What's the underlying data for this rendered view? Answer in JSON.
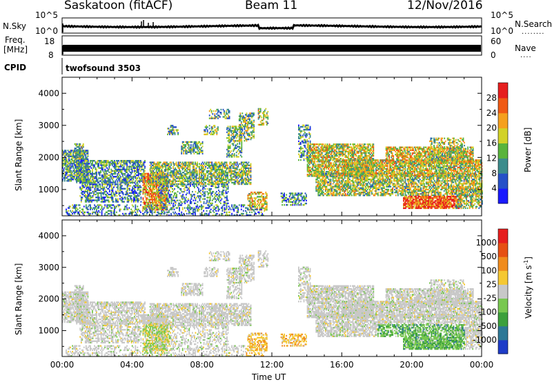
{
  "header": {
    "station": "Saskatoon (fitACF)",
    "beam": "Beam 11",
    "date": "12/Nov/2016"
  },
  "top_panels": {
    "nsky_label": "N.Sky",
    "nsky_ticks": [
      "10^5",
      "10^0"
    ],
    "nsearch_ticks": [
      "10^5",
      "10^0"
    ],
    "nsearch_label": "N.Search",
    "freq_label": "Freq.",
    "freq_unit": "[MHz]",
    "freq_ticks": [
      "18",
      "8"
    ],
    "nave_ticks": [
      "60",
      "0"
    ],
    "nave_label": "Nave",
    "cpid_label": "CPID",
    "cpid_value": "twofsound 3503"
  },
  "chart_data": [
    {
      "type": "heatmap",
      "name": "power",
      "ylabel": "Slant Range [km]",
      "ylim": [
        180,
        4500
      ],
      "yticks": [
        "1000",
        "2000",
        "3000",
        "4000"
      ],
      "xticks": [
        "00:00",
        "04:00",
        "08:00",
        "12:00",
        "16:00",
        "20:00",
        "00:00"
      ],
      "xlim_hours": [
        0,
        24
      ],
      "colorbar_label": "Power [dB]",
      "colorbar_ticks": [
        "4",
        "8",
        "12",
        "16",
        "20",
        "24",
        "28"
      ],
      "colorbar_colors": [
        "#1a1aff",
        "#2650c8",
        "#3c8c8c",
        "#59b43c",
        "#d2d228",
        "#f5a01e",
        "#f05a14",
        "#e61e1e"
      ]
    },
    {
      "type": "heatmap",
      "name": "velocity",
      "ylabel": "Slant Range [km]",
      "ylim": [
        180,
        4500
      ],
      "yticks": [
        "1000",
        "2000",
        "3000",
        "4000"
      ],
      "xticks": [
        "00:00",
        "04:00",
        "08:00",
        "12:00",
        "16:00",
        "20:00",
        "00:00"
      ],
      "xlim_hours": [
        0,
        24
      ],
      "xlabel": "Time UT",
      "colorbar_label": "Velocity [m s^-1]",
      "colorbar_ticks": [
        "1000",
        "500",
        "100",
        "25",
        "-25",
        "-100",
        "-500",
        "-1000"
      ],
      "colorbar_colors": [
        "#1e3cc8",
        "#2d7896",
        "#3ca03c",
        "#78c850",
        "#c8c8c8",
        "#f5c832",
        "#f08c1e",
        "#e65014",
        "#e61e1e"
      ]
    }
  ]
}
